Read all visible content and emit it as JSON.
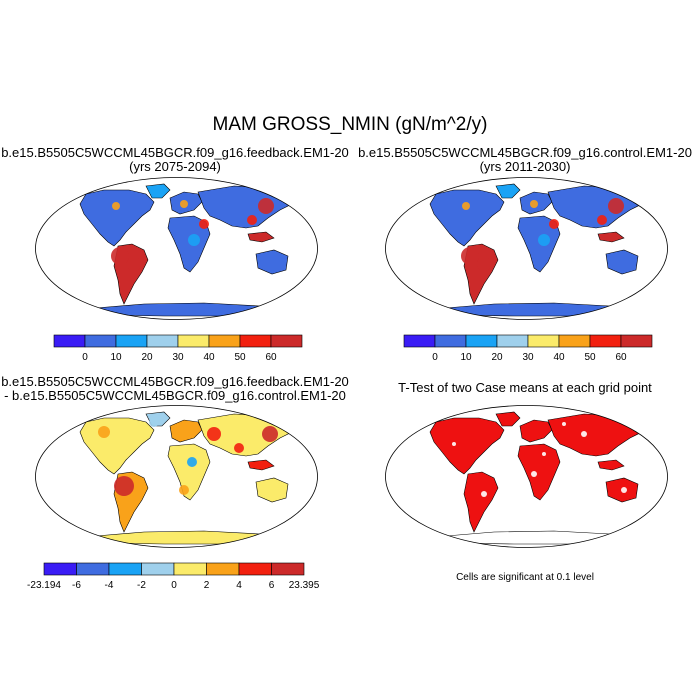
{
  "main_title": "MAM GROSS_NMIN (gN/m^2/y)",
  "panels": [
    {
      "title_line1": "b.e15.B5505C5WCCML45BGCR.f09_g16.feedback.EM1-20",
      "title_line2": "(yrs 2075-2094)",
      "colorbar": [
        "0",
        "10",
        "20",
        "30",
        "40",
        "50",
        "60"
      ]
    },
    {
      "title_line1": "b.e15.B5505C5WCCML45BGCR.f09_g16.control.EM1-20",
      "title_line2": "(yrs 2011-2030)",
      "colorbar": [
        "0",
        "10",
        "20",
        "30",
        "40",
        "50",
        "60"
      ]
    },
    {
      "title_line1": "b.e15.B5505C5WCCML45BGCR.f09_g16.feedback.EM1-20",
      "title_line2": "- b.e15.B5505C5WCCML45BGCR.f09_g16.control.EM1-20",
      "colorbar": [
        "-23.194",
        "-6",
        "-4",
        "-2",
        "0",
        "2",
        "4",
        "6",
        "23.395"
      ]
    },
    {
      "title_line1": "T-Test of two Case means at each grid point",
      "note": "Cells are significant at 0.1 level"
    }
  ],
  "colors": {
    "abs_scale": [
      "#3a1cf5",
      "#3f6ce0",
      "#1aa3f5",
      "#9fd0ec",
      "#fbeb6a",
      "#f9a21a",
      "#f2200f",
      "#cc2a2a"
    ],
    "diff_scale": [
      "#3a1cf5",
      "#3f6ce0",
      "#1aa3f5",
      "#9fd0ec",
      "#fbeb6a",
      "#f9a21a",
      "#f2200f",
      "#cc2a2a"
    ],
    "significant": "#ee1111"
  }
}
